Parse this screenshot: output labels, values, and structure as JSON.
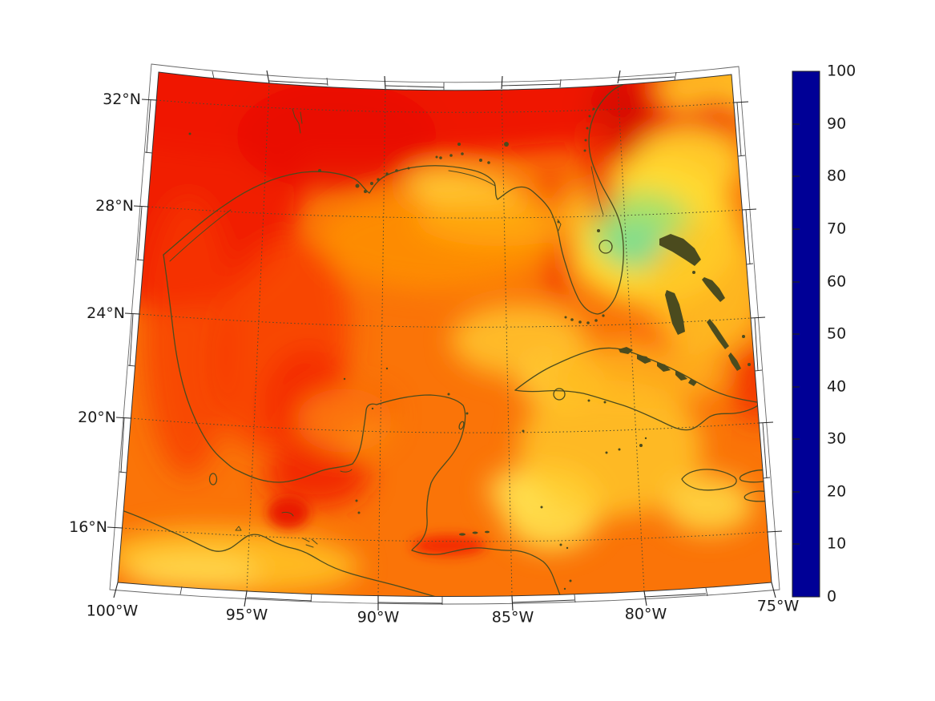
{
  "map": {
    "lat_ticks": [
      "32°N",
      "28°N",
      "24°N",
      "20°N",
      "16°N"
    ],
    "lon_ticks": [
      "100°W",
      "95°W",
      "90°W",
      "85°W",
      "80°W",
      "75°W"
    ],
    "grid_style": "dotted",
    "coastline_color": "#4b4b1e",
    "grid_color": "#4a4a30"
  },
  "colorbar": {
    "range_min": 0,
    "range_max": 100,
    "tick_labels": [
      "100",
      "90",
      "80",
      "70",
      "60",
      "50",
      "40",
      "30",
      "20",
      "10",
      "0"
    ],
    "stops": [
      {
        "v": 0,
        "c": "#000096"
      },
      {
        "v": 10,
        "c": "#0000e8"
      },
      {
        "v": 20,
        "c": "#0050ff"
      },
      {
        "v": 30,
        "c": "#00b4ff"
      },
      {
        "v": 40,
        "c": "#22dcd2"
      },
      {
        "v": 50,
        "c": "#6ede85"
      },
      {
        "v": 60,
        "c": "#cfe93a"
      },
      {
        "v": 65,
        "c": "#ffff00"
      },
      {
        "v": 70,
        "c": "#ffc800"
      },
      {
        "v": 80,
        "c": "#ff7800"
      },
      {
        "v": 90,
        "c": "#f60000"
      },
      {
        "v": 100,
        "c": "#7e0000"
      }
    ]
  },
  "chart_data": {
    "type": "heatmap",
    "region": "geographic filled-contour field with coastlines",
    "x_ticks": [
      "100°W",
      "95°W",
      "90°W",
      "85°W",
      "80°W",
      "75°W"
    ],
    "y_ticks": [
      "32°N",
      "28°N",
      "24°N",
      "20°N",
      "16°N"
    ],
    "colorbar_range": [
      0,
      100
    ],
    "colorbar_tick_step": 10,
    "field_values_visible_range": [
      55,
      92
    ]
  }
}
